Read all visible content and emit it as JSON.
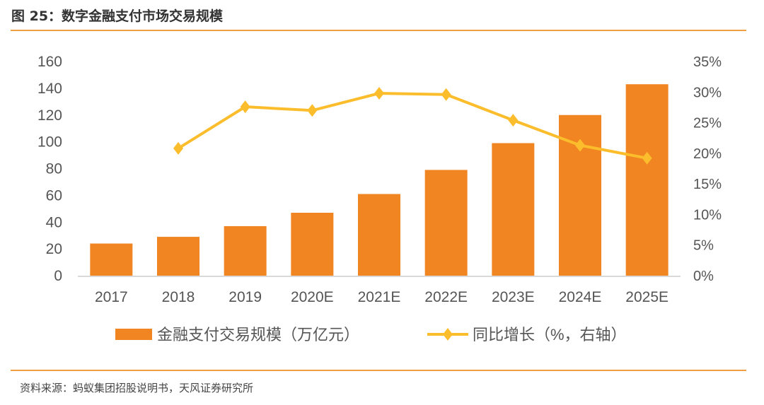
{
  "title": "图 25：数字金融支付市场交易规模",
  "source": "资料来源：蚂蚁集团招股说明书，天风证券研究所",
  "chart_data": {
    "type": "bar+line",
    "categories": [
      "2017",
      "2018",
      "2019",
      "2020E",
      "2021E",
      "2022E",
      "2023E",
      "2024E",
      "2025E"
    ],
    "series": [
      {
        "name": "金融支付交易规模（万亿元）",
        "type": "bar",
        "axis": "left",
        "color": "#f08522",
        "values": [
          24,
          29,
          37,
          47,
          61,
          79,
          99,
          120,
          143
        ]
      },
      {
        "name": "同比增长（%，右轴）",
        "type": "line",
        "axis": "right",
        "color": "#fbbd2c",
        "values": [
          null,
          20.8,
          27.6,
          27.0,
          29.8,
          29.6,
          25.4,
          21.3,
          19.2
        ]
      }
    ],
    "y_left": {
      "lim": [
        0,
        160
      ],
      "ticks": [
        "0",
        "20",
        "40",
        "60",
        "80",
        "100",
        "120",
        "140",
        "160"
      ]
    },
    "y_right": {
      "lim": [
        0,
        35
      ],
      "ticks": [
        "0%",
        "5%",
        "10%",
        "15%",
        "20%",
        "25%",
        "30%",
        "35%"
      ]
    },
    "grid": false,
    "legend": "bottom"
  }
}
